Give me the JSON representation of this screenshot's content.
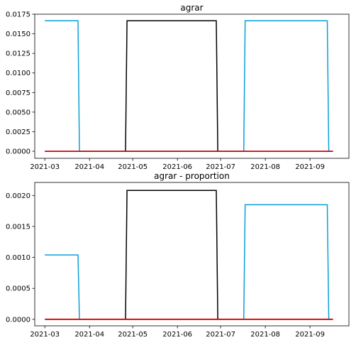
{
  "chart_data": [
    {
      "type": "line",
      "title": "agrar",
      "xlabel": "",
      "ylabel": "",
      "x_ticks": [
        "2021-03",
        "2021-04",
        "2021-05",
        "2021-06",
        "2021-07",
        "2021-08",
        "2021-09"
      ],
      "x_tick_dates": [
        "2021-03-01",
        "2021-04-01",
        "2021-05-01",
        "2021-06-01",
        "2021-07-01",
        "2021-08-01",
        "2021-09-01"
      ],
      "xlim": [
        "2021-02-22",
        "2021-09-28"
      ],
      "y_ticks": [
        "0.0000",
        "0.0025",
        "0.0050",
        "0.0075",
        "0.0100",
        "0.0125",
        "0.0150",
        "0.0175"
      ],
      "ylim": [
        -0.0009,
        0.0175
      ],
      "grid": false,
      "series": [
        {
          "color": "#0a9fd8",
          "points": [
            [
              "2021-03-01",
              0.01667
            ],
            [
              "2021-03-24",
              0.01667
            ],
            [
              "2021-03-25",
              0
            ],
            [
              "2021-07-17",
              0
            ],
            [
              "2021-07-18",
              0.01667
            ],
            [
              "2021-09-13",
              0.01667
            ],
            [
              "2021-09-14",
              0
            ]
          ]
        },
        {
          "color": "#000000",
          "points": [
            [
              "2021-04-26",
              0
            ],
            [
              "2021-04-27",
              0.01667
            ],
            [
              "2021-06-28",
              0.01667
            ],
            [
              "2021-06-29",
              0
            ]
          ]
        },
        {
          "color": "#d40000",
          "points": [
            [
              "2021-03-01",
              0
            ],
            [
              "2021-09-17",
              0
            ]
          ]
        }
      ]
    },
    {
      "type": "line",
      "title": "agrar - proportion",
      "xlabel": "",
      "ylabel": "",
      "x_ticks": [
        "2021-03",
        "2021-04",
        "2021-05",
        "2021-06",
        "2021-07",
        "2021-08",
        "2021-09"
      ],
      "x_tick_dates": [
        "2021-03-01",
        "2021-04-01",
        "2021-05-01",
        "2021-06-01",
        "2021-07-01",
        "2021-08-01",
        "2021-09-01"
      ],
      "xlim": [
        "2021-02-22",
        "2021-09-28"
      ],
      "y_ticks": [
        "0.0000",
        "0.0005",
        "0.0010",
        "0.0015",
        "0.0020"
      ],
      "ylim": [
        -0.000105,
        0.00221
      ],
      "grid": false,
      "series": [
        {
          "color": "#0a9fd8",
          "points": [
            [
              "2021-03-01",
              0.00104
            ],
            [
              "2021-03-24",
              0.00104
            ],
            [
              "2021-03-25",
              0
            ],
            [
              "2021-07-17",
              0
            ],
            [
              "2021-07-18",
              0.00185
            ],
            [
              "2021-09-13",
              0.00185
            ],
            [
              "2021-09-14",
              0
            ]
          ]
        },
        {
          "color": "#000000",
          "points": [
            [
              "2021-04-26",
              0
            ],
            [
              "2021-04-27",
              0.00208
            ],
            [
              "2021-06-28",
              0.00208
            ],
            [
              "2021-06-29",
              0
            ]
          ]
        },
        {
          "color": "#d40000",
          "points": [
            [
              "2021-03-01",
              0
            ],
            [
              "2021-09-17",
              0
            ]
          ]
        }
      ]
    }
  ]
}
